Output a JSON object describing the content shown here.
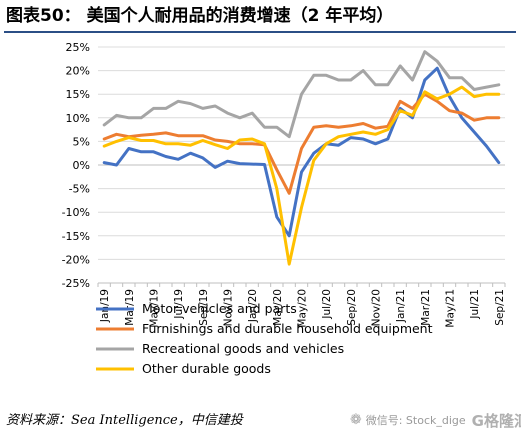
{
  "title": "图表50：  美国个人耐用品的消费增速（2 年平均）",
  "source": "资料来源：Sea Intelligence，中信建投",
  "watermark": {
    "icon": "wechat-icon",
    "text": "微信号: Stock_dige",
    "brand": "G格隆汇"
  },
  "colors": {
    "motor": "#4472c4",
    "furnishings": "#ed7d31",
    "recreational": "#a5a5a5",
    "other": "#ffc000",
    "title_rule": "#2b4f86"
  },
  "chart_data": {
    "type": "line",
    "title": "",
    "xlabel": "",
    "ylabel": "",
    "ylim": [
      -25,
      25
    ],
    "yticks": [
      25,
      20,
      15,
      10,
      5,
      0,
      -5,
      -10,
      -15,
      -20,
      -25
    ],
    "ytick_labels": [
      "25%",
      "20%",
      "15%",
      "10%",
      "5%",
      "0%",
      "-5%",
      "-10%",
      "-15%",
      "-20%",
      "-25%"
    ],
    "grid": "horizontal",
    "legend_position": "bottom",
    "x": [
      "Jan/19",
      "Feb/19",
      "Mar/19",
      "Apr/19",
      "May/19",
      "Jun/19",
      "Jul/19",
      "Aug/19",
      "Sep/19",
      "Oct/19",
      "Nov/19",
      "Dec/19",
      "Jan/20",
      "Feb/20",
      "Mar/20",
      "Apr/20",
      "May/20",
      "Jun/20",
      "Jul/20",
      "Aug/20",
      "Sep/20",
      "Oct/20",
      "Nov/20",
      "Dec/20",
      "Jan/21",
      "Feb/21",
      "Mar/21",
      "Apr/21",
      "May/21",
      "Jun/21",
      "Jul/21",
      "Aug/21",
      "Sep/21"
    ],
    "x_tick_labels": [
      "Jan/19",
      "Mar/19",
      "May/19",
      "Jul/19",
      "Sep/19",
      "Nov/19",
      "Jan/20",
      "Mar/20",
      "May/20",
      "Jul/20",
      "Sep/20",
      "Nov/20",
      "Jan/21",
      "Mar/21",
      "May/21",
      "Jul/21",
      "Sep/21"
    ],
    "series": [
      {
        "name": "Motor vehicles and parts",
        "color": "#4472c4",
        "values": [
          0.5,
          0,
          3.5,
          2.8,
          2.8,
          1.8,
          1.2,
          2.5,
          1.5,
          -0.5,
          0.8,
          0.3,
          0.2,
          0.1,
          -11,
          -15,
          -1.5,
          2.5,
          4.5,
          4.2,
          5.8,
          5.5,
          4.5,
          5.5,
          12,
          10,
          18,
          20.5,
          14.5,
          10,
          7,
          4,
          0.5
        ]
      },
      {
        "name": "Furnishings and durable household equipment",
        "color": "#ed7d31",
        "values": [
          5.5,
          6.5,
          6,
          6.3,
          6.5,
          6.8,
          6.2,
          6.2,
          6.2,
          5.3,
          5,
          4.5,
          4.5,
          4.3,
          -1,
          -6,
          3.5,
          8,
          8.3,
          8,
          8.3,
          8.8,
          7.8,
          8.2,
          13.5,
          12,
          15,
          13.5,
          11.5,
          11,
          9.5,
          10,
          10
        ]
      },
      {
        "name": "Recreational goods and vehicles",
        "color": "#a5a5a5",
        "values": [
          8.5,
          10.5,
          10,
          10,
          12,
          12,
          13.5,
          13,
          12,
          12.5,
          11,
          10,
          11,
          8,
          8,
          6,
          15,
          19,
          19,
          18,
          18,
          20,
          17,
          17,
          21,
          18,
          24,
          22,
          18.5,
          18.5,
          16,
          16.5,
          17
        ]
      },
      {
        "name": "Other durable goods",
        "color": "#ffc000",
        "values": [
          4,
          5,
          5.8,
          5.2,
          5.2,
          4.5,
          4.5,
          4.2,
          5.2,
          4.3,
          3.5,
          5.3,
          5.5,
          4.5,
          -5,
          -21,
          -9,
          1,
          4.5,
          6,
          6.5,
          7,
          6.5,
          7.5,
          11.5,
          10.5,
          15.5,
          14,
          15,
          16.5,
          14.5,
          15,
          15
        ]
      }
    ]
  }
}
